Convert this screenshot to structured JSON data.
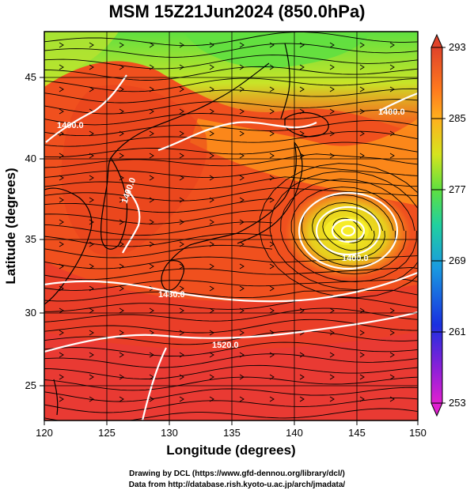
{
  "title": "MSM 15Z21Jun2024 (850.0hPa)",
  "xaxis": {
    "label": "Longitude (degrees)",
    "ticks": [
      "120",
      "125",
      "130",
      "135",
      "140",
      "145",
      "150"
    ]
  },
  "yaxis": {
    "label": "Latitude  (degrees)",
    "ticks": [
      "25",
      "30",
      "35",
      "40",
      "45"
    ]
  },
  "colorbar": {
    "ticks": [
      "293",
      "285",
      "277",
      "269",
      "261",
      "253"
    ]
  },
  "contours": {
    "labels": [
      "1400.0",
      "1400.0",
      "1400.0",
      "1400.0",
      "1480.0",
      "1520.0"
    ]
  },
  "credits": {
    "line1": "Drawing by DCL (https://www.gfd-dennou.org/library/dcl/)",
    "line2": "Data from http://database.rish.kyoto-u.ac.jp/arch/jmadata/"
  },
  "chart_data": {
    "type": "heatmap",
    "title": "MSM 15Z21Jun2024 (850.0hPa)",
    "xlabel": "Longitude (degrees)",
    "ylabel": "Latitude  (degrees)",
    "xlim": [
      120,
      150
    ],
    "ylim": [
      22.5,
      47.6
    ],
    "x_ticks": [
      120,
      125,
      130,
      135,
      140,
      145,
      150
    ],
    "y_ticks": [
      25,
      30,
      35,
      40,
      45
    ],
    "colorbar_range": [
      253,
      293
    ],
    "colorbar_ticks": [
      293,
      285,
      277,
      269,
      261,
      253
    ],
    "grid": true,
    "overlays": [
      "temperature shading",
      "streamlines",
      "geopotential height contours",
      "coastlines"
    ],
    "low_pressure_center": [
      144.2,
      35.5
    ],
    "colors": {
      "warm": "#e8452a",
      "mid": "#ff9a1a",
      "cool": "#d8e020",
      "cold": "#6fe040",
      "contour": "#ffffff"
    }
  }
}
